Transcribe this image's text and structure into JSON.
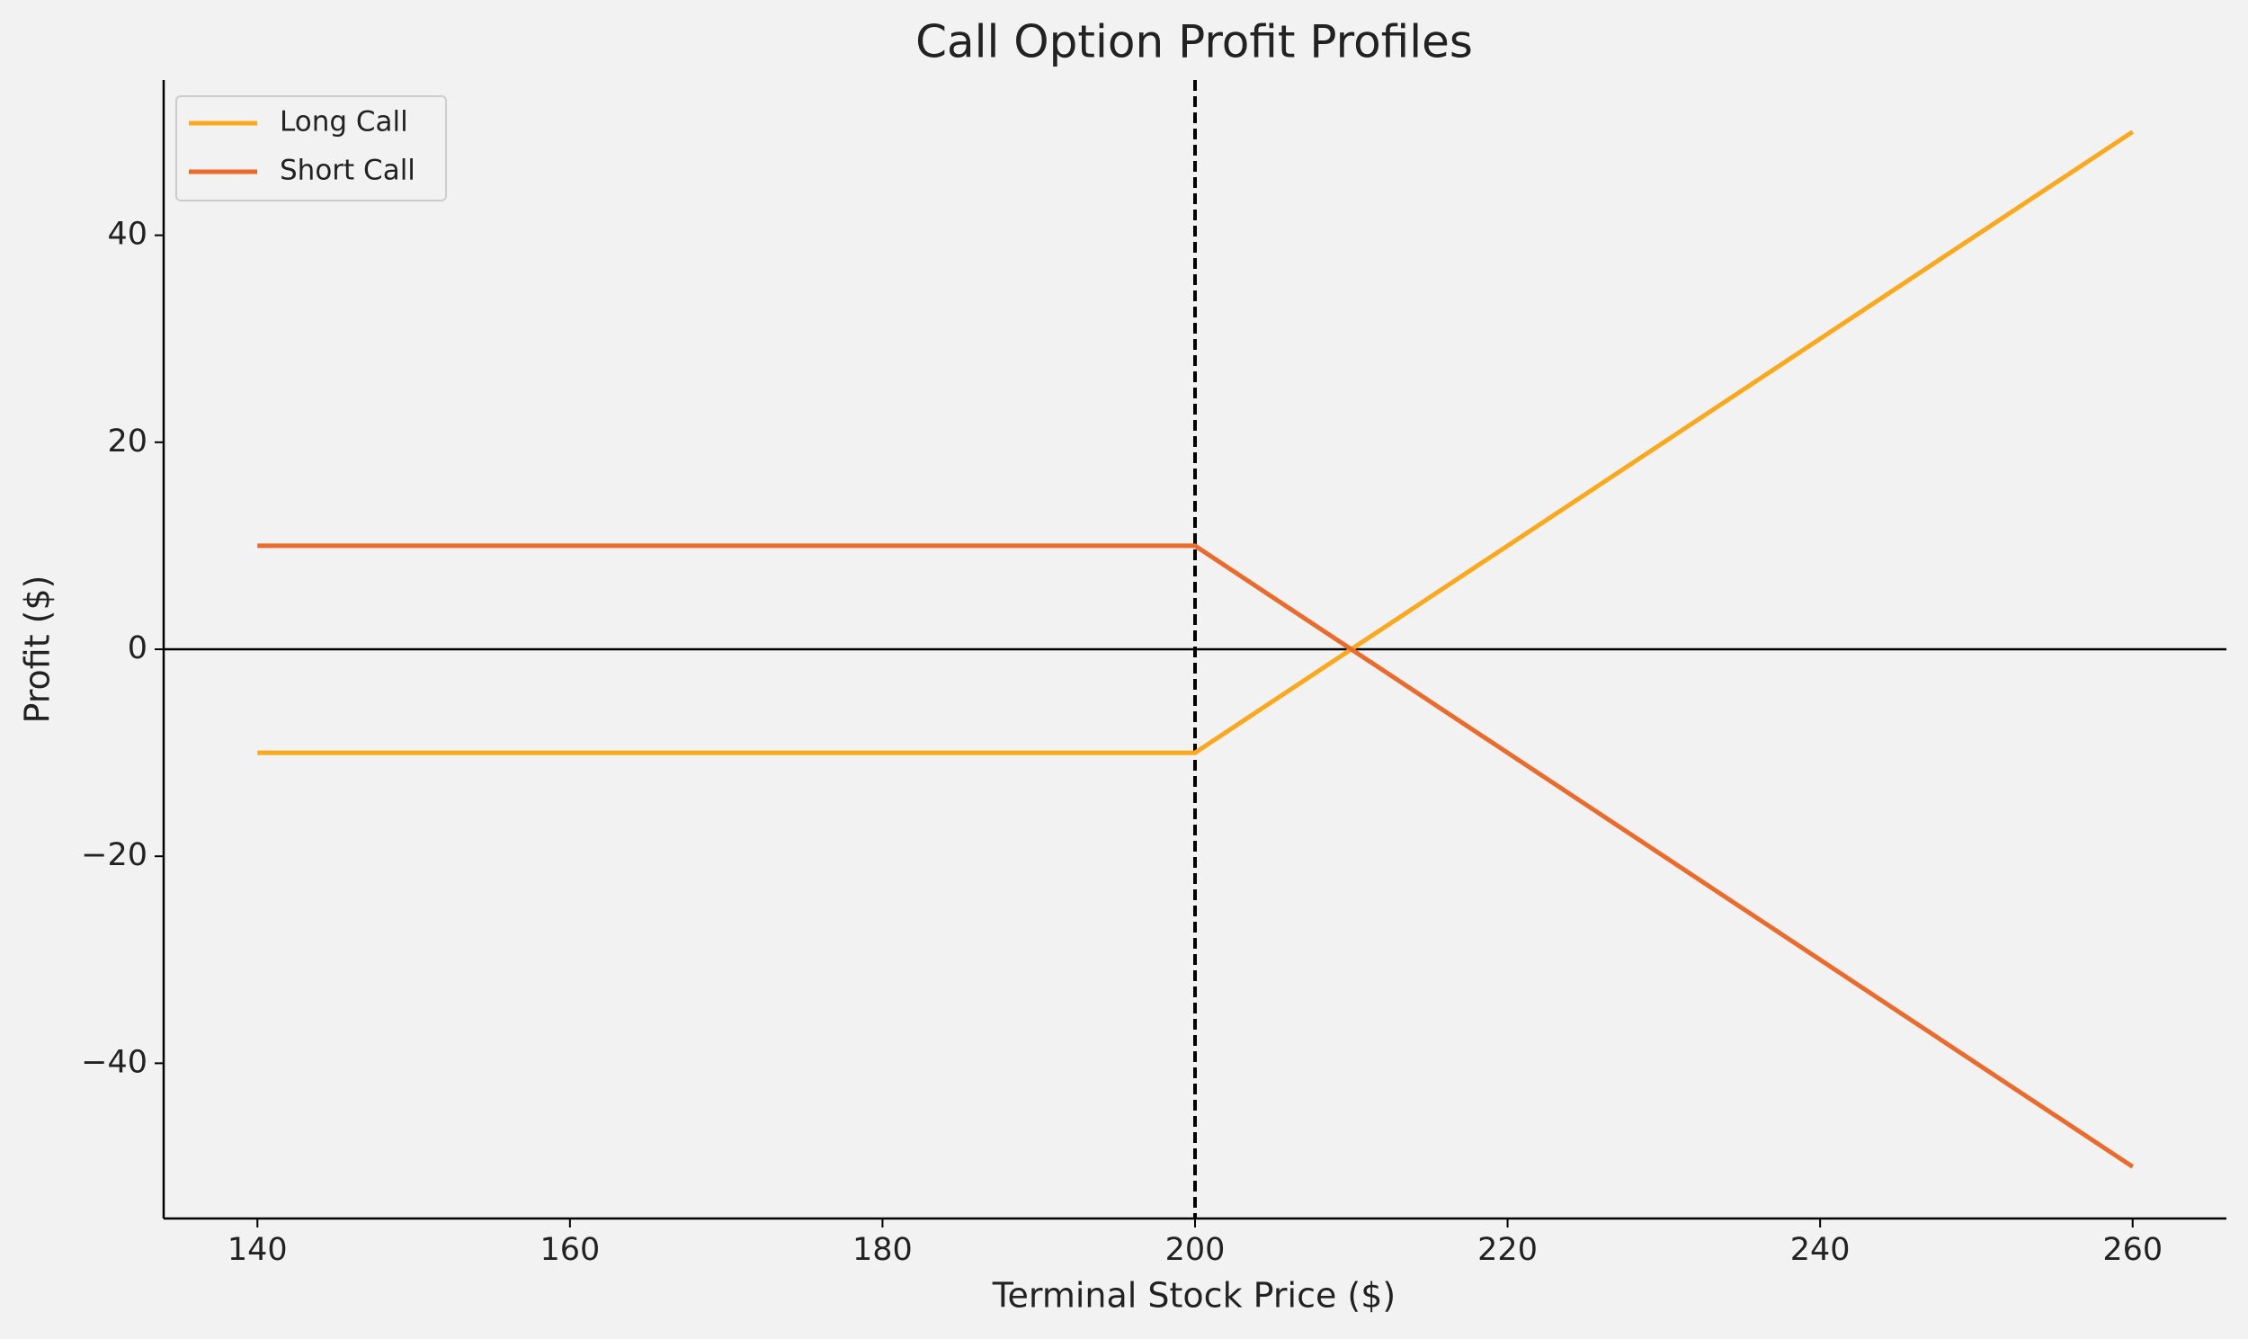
{
  "chart_data": {
    "type": "line",
    "title": "Call Option Profit Profiles",
    "xlabel": "Terminal Stock Price ($)",
    "ylabel": "Profit ($)",
    "x": [
      140,
      200,
      260
    ],
    "series": [
      {
        "name": "Long Call",
        "color": "#f9a91b",
        "values": [
          -10,
          -10,
          50
        ]
      },
      {
        "name": "Short Call",
        "color": "#ea6b2b",
        "values": [
          10,
          10,
          -50
        ]
      }
    ],
    "xlim": [
      134,
      266
    ],
    "ylim": [
      -55,
      55
    ],
    "xticks": [
      140,
      160,
      180,
      200,
      220,
      240,
      260
    ],
    "yticks": [
      {
        "value": -40,
        "label": "−40"
      },
      {
        "value": -20,
        "label": "−20"
      },
      0,
      20,
      40
    ],
    "vline": 200,
    "hline": 0,
    "grid": false,
    "legend": "upper left"
  }
}
